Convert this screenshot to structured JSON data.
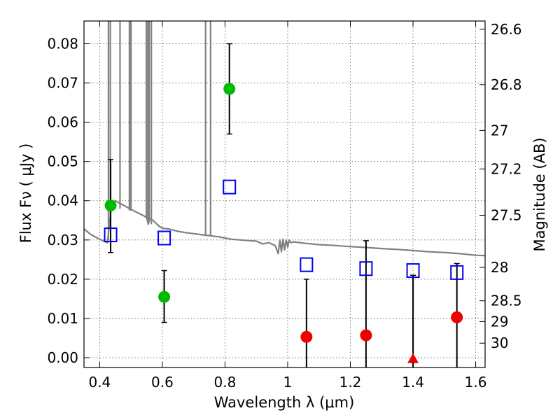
{
  "chart_data": {
    "type": "scatter",
    "xlabel": "Wavelength  λ (μm)",
    "ylabel": "Flux  Fν  ( μJy )",
    "ylabel_right": "Magnitude (AB)",
    "xlim": [
      0.35,
      1.63
    ],
    "ylim": [
      -0.0025,
      0.0858
    ],
    "grid": true,
    "x_ticks": [
      {
        "value": 0.4,
        "label": "0.4"
      },
      {
        "value": 0.6,
        "label": "0.6"
      },
      {
        "value": 0.8,
        "label": "0.8"
      },
      {
        "value": 1.0,
        "label": "1"
      },
      {
        "value": 1.2,
        "label": "1.2"
      },
      {
        "value": 1.4,
        "label": "1.4"
      },
      {
        "value": 1.6,
        "label": "1.6"
      }
    ],
    "y_ticks": [
      {
        "value": 0.0,
        "label": "0.00"
      },
      {
        "value": 0.01,
        "label": "0.01"
      },
      {
        "value": 0.02,
        "label": "0.02"
      },
      {
        "value": 0.03,
        "label": "0.03"
      },
      {
        "value": 0.04,
        "label": "0.04"
      },
      {
        "value": 0.05,
        "label": "0.05"
      },
      {
        "value": 0.06,
        "label": "0.06"
      },
      {
        "value": 0.07,
        "label": "0.07"
      },
      {
        "value": 0.08,
        "label": "0.08"
      }
    ],
    "right_ticks": [
      {
        "flux": 0.0837,
        "label": "26.6"
      },
      {
        "flux": 0.0696,
        "label": "26.8"
      },
      {
        "flux": 0.0579,
        "label": "27"
      },
      {
        "flux": 0.0481,
        "label": "27.2"
      },
      {
        "flux": 0.0363,
        "label": "27.5"
      },
      {
        "flux": 0.023,
        "label": "28"
      },
      {
        "flux": 0.0145,
        "label": "28.5"
      },
      {
        "flux": 0.0092,
        "label": "29"
      },
      {
        "flux": 0.0037,
        "label": "30"
      }
    ],
    "series": [
      {
        "kind": "model-spectrum",
        "color": "#808080",
        "points": [
          [
            0.35,
            0.0328
          ],
          [
            0.37,
            0.0315
          ],
          [
            0.39,
            0.0306
          ],
          [
            0.41,
            0.0298
          ],
          [
            0.425,
            0.0293
          ],
          [
            0.435,
            0.037
          ],
          [
            0.44,
            0.0394
          ],
          [
            0.45,
            0.04
          ],
          [
            0.46,
            0.0395
          ],
          [
            0.48,
            0.0387
          ],
          [
            0.5,
            0.0378
          ],
          [
            0.52,
            0.037
          ],
          [
            0.54,
            0.0362
          ],
          [
            0.55,
            0.0357
          ],
          [
            0.555,
            0.034
          ],
          [
            0.56,
            0.0355
          ],
          [
            0.57,
            0.035
          ],
          [
            0.59,
            0.0335
          ],
          [
            0.6,
            0.033
          ],
          [
            0.62,
            0.0328
          ],
          [
            0.65,
            0.0322
          ],
          [
            0.68,
            0.0318
          ],
          [
            0.7,
            0.0316
          ],
          [
            0.72,
            0.0314
          ],
          [
            0.74,
            0.0312
          ],
          [
            0.76,
            0.031
          ],
          [
            0.78,
            0.0308
          ],
          [
            0.8,
            0.0305
          ],
          [
            0.82,
            0.0302
          ],
          [
            0.85,
            0.03
          ],
          [
            0.88,
            0.0298
          ],
          [
            0.9,
            0.0297
          ],
          [
            0.92,
            0.029
          ],
          [
            0.94,
            0.0293
          ],
          [
            0.96,
            0.0286
          ],
          [
            0.97,
            0.0265
          ],
          [
            0.975,
            0.03
          ],
          [
            0.98,
            0.027
          ],
          [
            0.985,
            0.0302
          ],
          [
            0.99,
            0.0275
          ],
          [
            0.995,
            0.03
          ],
          [
            1.0,
            0.0282
          ],
          [
            1.005,
            0.03
          ],
          [
            1.01,
            0.0293
          ],
          [
            1.02,
            0.0295
          ],
          [
            1.05,
            0.0292
          ],
          [
            1.1,
            0.0288
          ],
          [
            1.15,
            0.0286
          ],
          [
            1.2,
            0.0283
          ],
          [
            1.25,
            0.0281
          ],
          [
            1.3,
            0.0278
          ],
          [
            1.35,
            0.0276
          ],
          [
            1.4,
            0.0273
          ],
          [
            1.45,
            0.027
          ],
          [
            1.5,
            0.0268
          ],
          [
            1.55,
            0.0265
          ],
          [
            1.6,
            0.0261
          ],
          [
            1.63,
            0.026
          ]
        ],
        "emission_lines": [
          {
            "x": 0.428,
            "base": 0.03
          },
          {
            "x": 0.434,
            "base": 0.036
          },
          {
            "x": 0.465,
            "base": 0.038
          },
          {
            "x": 0.495,
            "base": 0.0375
          },
          {
            "x": 0.5,
            "base": 0.0375
          },
          {
            "x": 0.549,
            "base": 0.0355
          },
          {
            "x": 0.554,
            "base": 0.0345
          },
          {
            "x": 0.558,
            "base": 0.035
          },
          {
            "x": 0.565,
            "base": 0.034
          },
          {
            "x": 0.738,
            "base": 0.0312
          },
          {
            "x": 0.754,
            "base": 0.031
          }
        ]
      },
      {
        "kind": "model-photometry",
        "marker": "square",
        "color": "#0000ee",
        "points": [
          {
            "x": 0.435,
            "y": 0.0313
          },
          {
            "x": 0.606,
            "y": 0.0305
          },
          {
            "x": 0.814,
            "y": 0.0435
          },
          {
            "x": 1.06,
            "y": 0.0237
          },
          {
            "x": 1.25,
            "y": 0.0227
          },
          {
            "x": 1.4,
            "y": 0.0222
          },
          {
            "x": 1.54,
            "y": 0.0217
          }
        ]
      },
      {
        "kind": "observed-green",
        "marker": "circle",
        "color": "#00bb00",
        "points": [
          {
            "x": 0.435,
            "y": 0.0388,
            "yerr_low": 0.0268,
            "yerr_high": 0.0505
          },
          {
            "x": 0.606,
            "y": 0.0155,
            "yerr_low": 0.009,
            "yerr_high": 0.0222
          },
          {
            "x": 0.814,
            "y": 0.0685,
            "yerr_low": 0.057,
            "yerr_high": 0.08
          }
        ]
      },
      {
        "kind": "observed-red",
        "marker": "circle",
        "color": "#ee0000",
        "points": [
          {
            "x": 1.06,
            "y": 0.0053,
            "yerr_low": -0.0025,
            "yerr_high": 0.02
          },
          {
            "x": 1.25,
            "y": 0.0057,
            "yerr_low": -0.0025,
            "yerr_high": 0.0298
          },
          {
            "x": 1.54,
            "y": 0.0103,
            "yerr_low": -0.0025,
            "yerr_high": 0.024
          }
        ]
      },
      {
        "kind": "upper-limit",
        "marker": "triangle",
        "color": "#ee0000",
        "points": [
          {
            "x": 1.4,
            "y": -0.0003,
            "yerr_low": -0.0025,
            "yerr_high": 0.021
          }
        ]
      }
    ]
  }
}
